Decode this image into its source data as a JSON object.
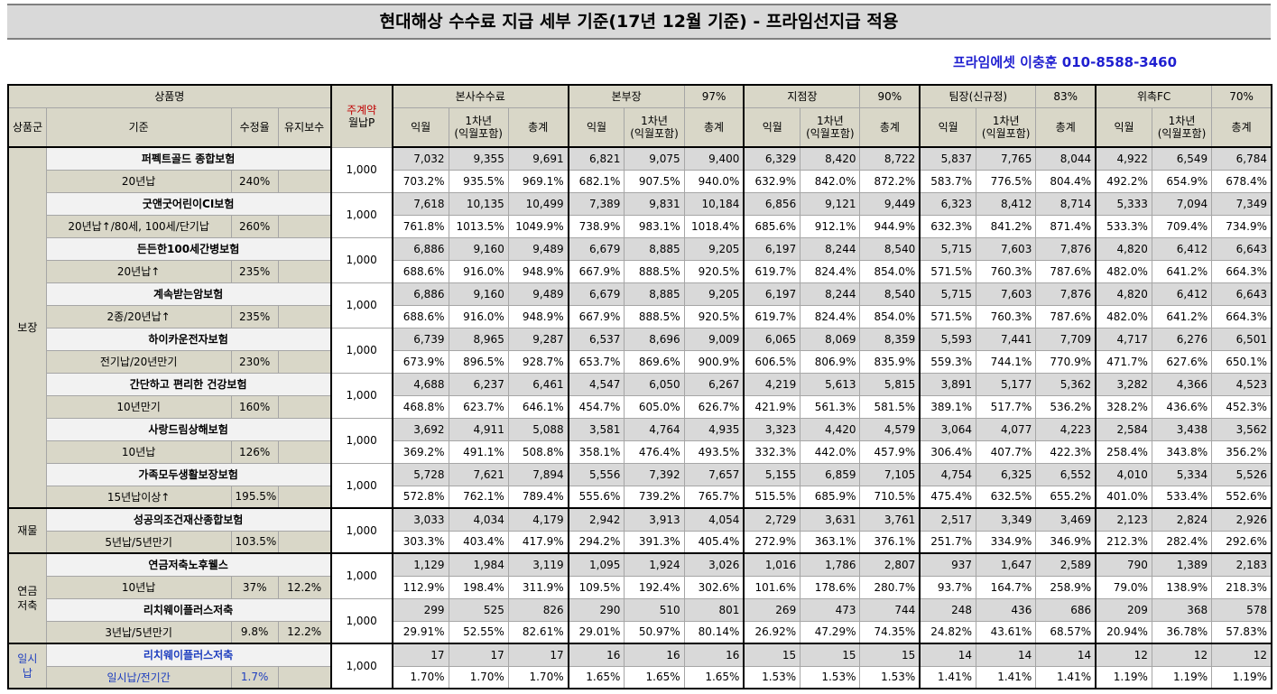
{
  "title": "현대해상 수수료 지급 세부 기준(17년 12월 기준) - 프라임선지급 적용",
  "contact": "프라임에셋 이충훈 010-8588-3460",
  "header": {
    "product": "상품명",
    "premium_label": "주계약",
    "premium_label2": "월납P",
    "group": "상품군",
    "basis": "기준",
    "rate": "수정율",
    "maint": "유지보수",
    "sections": [
      {
        "name": "본사수수료",
        "pct": ""
      },
      {
        "name": "본부장",
        "pct": "97%"
      },
      {
        "name": "지점장",
        "pct": "90%"
      },
      {
        "name": "팀장(신규정)",
        "pct": "83%"
      },
      {
        "name": "위촉FC",
        "pct": "70%"
      }
    ],
    "col_month": "익월",
    "col_year1": "1차년",
    "col_year1b": "(익월포함)",
    "col_total": "총계"
  },
  "groups": [
    {
      "name": "보장",
      "rows": [
        0,
        1,
        2,
        3,
        4,
        5,
        6,
        7
      ]
    },
    {
      "name": "재물",
      "rows": [
        8
      ]
    },
    {
      "name": "연금\n저축",
      "rows": [
        9,
        10
      ]
    },
    {
      "name": "일시납",
      "rows": [
        11
      ]
    }
  ],
  "products": [
    {
      "name": "퍼펙트골드 종합보험",
      "basis": "20년납",
      "rate": "240%",
      "maint": "",
      "premium": "1,000",
      "amounts": [
        "7,032",
        "9,355",
        "9,691",
        "6,821",
        "9,075",
        "9,400",
        "6,329",
        "8,420",
        "8,722",
        "5,837",
        "7,765",
        "8,044",
        "4,922",
        "6,549",
        "6,784"
      ],
      "pcts": [
        "703.2%",
        "935.5%",
        "969.1%",
        "682.1%",
        "907.5%",
        "940.0%",
        "632.9%",
        "842.0%",
        "872.2%",
        "583.7%",
        "776.5%",
        "804.4%",
        "492.2%",
        "654.9%",
        "678.4%"
      ]
    },
    {
      "name": "굿앤굿어린이CI보험",
      "basis": "20년납↑/80세, 100세/단기납",
      "rate": "260%",
      "maint": "",
      "premium": "1,000",
      "amounts": [
        "7,618",
        "10,135",
        "10,499",
        "7,389",
        "9,831",
        "10,184",
        "6,856",
        "9,121",
        "9,449",
        "6,323",
        "8,412",
        "8,714",
        "5,333",
        "7,094",
        "7,349"
      ],
      "pcts": [
        "761.8%",
        "1013.5%",
        "1049.9%",
        "738.9%",
        "983.1%",
        "1018.4%",
        "685.6%",
        "912.1%",
        "944.9%",
        "632.3%",
        "841.2%",
        "871.4%",
        "533.3%",
        "709.4%",
        "734.9%"
      ]
    },
    {
      "name": "든든한100세간병보험",
      "basis": "20년납↑",
      "rate": "235%",
      "maint": "",
      "premium": "1,000",
      "amounts": [
        "6,886",
        "9,160",
        "9,489",
        "6,679",
        "8,885",
        "9,205",
        "6,197",
        "8,244",
        "8,540",
        "5,715",
        "7,603",
        "7,876",
        "4,820",
        "6,412",
        "6,643"
      ],
      "pcts": [
        "688.6%",
        "916.0%",
        "948.9%",
        "667.9%",
        "888.5%",
        "920.5%",
        "619.7%",
        "824.4%",
        "854.0%",
        "571.5%",
        "760.3%",
        "787.6%",
        "482.0%",
        "641.2%",
        "664.3%"
      ]
    },
    {
      "name": "계속받는암보험",
      "basis": "2종/20년납↑",
      "rate": "235%",
      "maint": "",
      "premium": "1,000",
      "amounts": [
        "6,886",
        "9,160",
        "9,489",
        "6,679",
        "8,885",
        "9,205",
        "6,197",
        "8,244",
        "8,540",
        "5,715",
        "7,603",
        "7,876",
        "4,820",
        "6,412",
        "6,643"
      ],
      "pcts": [
        "688.6%",
        "916.0%",
        "948.9%",
        "667.9%",
        "888.5%",
        "920.5%",
        "619.7%",
        "824.4%",
        "854.0%",
        "571.5%",
        "760.3%",
        "787.6%",
        "482.0%",
        "641.2%",
        "664.3%"
      ]
    },
    {
      "name": "하이카운전자보험",
      "basis": "전기납/20년만기",
      "rate": "230%",
      "maint": "",
      "premium": "1,000",
      "amounts": [
        "6,739",
        "8,965",
        "9,287",
        "6,537",
        "8,696",
        "9,009",
        "6,065",
        "8,069",
        "8,359",
        "5,593",
        "7,441",
        "7,709",
        "4,717",
        "6,276",
        "6,501"
      ],
      "pcts": [
        "673.9%",
        "896.5%",
        "928.7%",
        "653.7%",
        "869.6%",
        "900.9%",
        "606.5%",
        "806.9%",
        "835.9%",
        "559.3%",
        "744.1%",
        "770.9%",
        "471.7%",
        "627.6%",
        "650.1%"
      ]
    },
    {
      "name": "간단하고 편리한 건강보험",
      "basis": "10년만기",
      "rate": "160%",
      "maint": "",
      "premium": "1,000",
      "amounts": [
        "4,688",
        "6,237",
        "6,461",
        "4,547",
        "6,050",
        "6,267",
        "4,219",
        "5,613",
        "5,815",
        "3,891",
        "5,177",
        "5,362",
        "3,282",
        "4,366",
        "4,523"
      ],
      "pcts": [
        "468.8%",
        "623.7%",
        "646.1%",
        "454.7%",
        "605.0%",
        "626.7%",
        "421.9%",
        "561.3%",
        "581.5%",
        "389.1%",
        "517.7%",
        "536.2%",
        "328.2%",
        "436.6%",
        "452.3%"
      ]
    },
    {
      "name": "사랑드림상해보험",
      "basis": "10년납",
      "rate": "126%",
      "maint": "",
      "premium": "1,000",
      "amounts": [
        "3,692",
        "4,911",
        "5,088",
        "3,581",
        "4,764",
        "4,935",
        "3,323",
        "4,420",
        "4,579",
        "3,064",
        "4,077",
        "4,223",
        "2,584",
        "3,438",
        "3,562"
      ],
      "pcts": [
        "369.2%",
        "491.1%",
        "508.8%",
        "358.1%",
        "476.4%",
        "493.5%",
        "332.3%",
        "442.0%",
        "457.9%",
        "306.4%",
        "407.7%",
        "422.3%",
        "258.4%",
        "343.8%",
        "356.2%"
      ]
    },
    {
      "name": "가족모두생활보장보험",
      "basis": "15년납이상↑",
      "rate": "195.5%",
      "maint": "",
      "premium": "1,000",
      "amounts": [
        "5,728",
        "7,621",
        "7,894",
        "5,556",
        "7,392",
        "7,657",
        "5,155",
        "6,859",
        "7,105",
        "4,754",
        "6,325",
        "6,552",
        "4,010",
        "5,334",
        "5,526"
      ],
      "pcts": [
        "572.8%",
        "762.1%",
        "789.4%",
        "555.6%",
        "739.2%",
        "765.7%",
        "515.5%",
        "685.9%",
        "710.5%",
        "475.4%",
        "632.5%",
        "655.2%",
        "401.0%",
        "533.4%",
        "552.6%"
      ]
    },
    {
      "name": "성공의조건재산종합보험",
      "basis": "5년납/5년만기",
      "rate": "103.5%",
      "maint": "",
      "premium": "1,000",
      "amounts": [
        "3,033",
        "4,034",
        "4,179",
        "2,942",
        "3,913",
        "4,054",
        "2,729",
        "3,631",
        "3,761",
        "2,517",
        "3,349",
        "3,469",
        "2,123",
        "2,824",
        "2,926"
      ],
      "pcts": [
        "303.3%",
        "403.4%",
        "417.9%",
        "294.2%",
        "391.3%",
        "405.4%",
        "272.9%",
        "363.1%",
        "376.1%",
        "251.7%",
        "334.9%",
        "346.9%",
        "212.3%",
        "282.4%",
        "292.6%"
      ]
    },
    {
      "name": "연금저축노후웰스",
      "basis": "10년납",
      "rate": "37%",
      "maint": "12.2%",
      "premium": "1,000",
      "amounts": [
        "1,129",
        "1,984",
        "3,119",
        "1,095",
        "1,924",
        "3,026",
        "1,016",
        "1,786",
        "2,807",
        "937",
        "1,647",
        "2,589",
        "790",
        "1,389",
        "2,183"
      ],
      "pcts": [
        "112.9%",
        "198.4%",
        "311.9%",
        "109.5%",
        "192.4%",
        "302.6%",
        "101.6%",
        "178.6%",
        "280.7%",
        "93.7%",
        "164.7%",
        "258.9%",
        "79.0%",
        "138.9%",
        "218.3%"
      ]
    },
    {
      "name": "리치웨이플러스저축",
      "basis": "3년납/5년만기",
      "rate": "9.8%",
      "maint": "12.2%",
      "premium": "1,000",
      "amounts": [
        "299",
        "525",
        "826",
        "290",
        "510",
        "801",
        "269",
        "473",
        "744",
        "248",
        "436",
        "686",
        "209",
        "368",
        "578"
      ],
      "pcts": [
        "29.91%",
        "52.55%",
        "82.61%",
        "29.01%",
        "50.97%",
        "80.14%",
        "26.92%",
        "47.29%",
        "74.35%",
        "24.82%",
        "43.61%",
        "68.57%",
        "20.94%",
        "36.78%",
        "57.83%"
      ]
    },
    {
      "name": "리치웨이플러스저축",
      "basis": "일시납/전기간",
      "rate": "1.7%",
      "maint": "",
      "premium": "1,000",
      "amounts": [
        "17",
        "17",
        "17",
        "16",
        "16",
        "16",
        "15",
        "15",
        "15",
        "14",
        "14",
        "14",
        "12",
        "12",
        "12"
      ],
      "pcts": [
        "1.70%",
        "1.70%",
        "1.70%",
        "1.65%",
        "1.65%",
        "1.65%",
        "1.53%",
        "1.53%",
        "1.53%",
        "1.41%",
        "1.41%",
        "1.41%",
        "1.19%",
        "1.19%",
        "1.19%"
      ]
    }
  ]
}
